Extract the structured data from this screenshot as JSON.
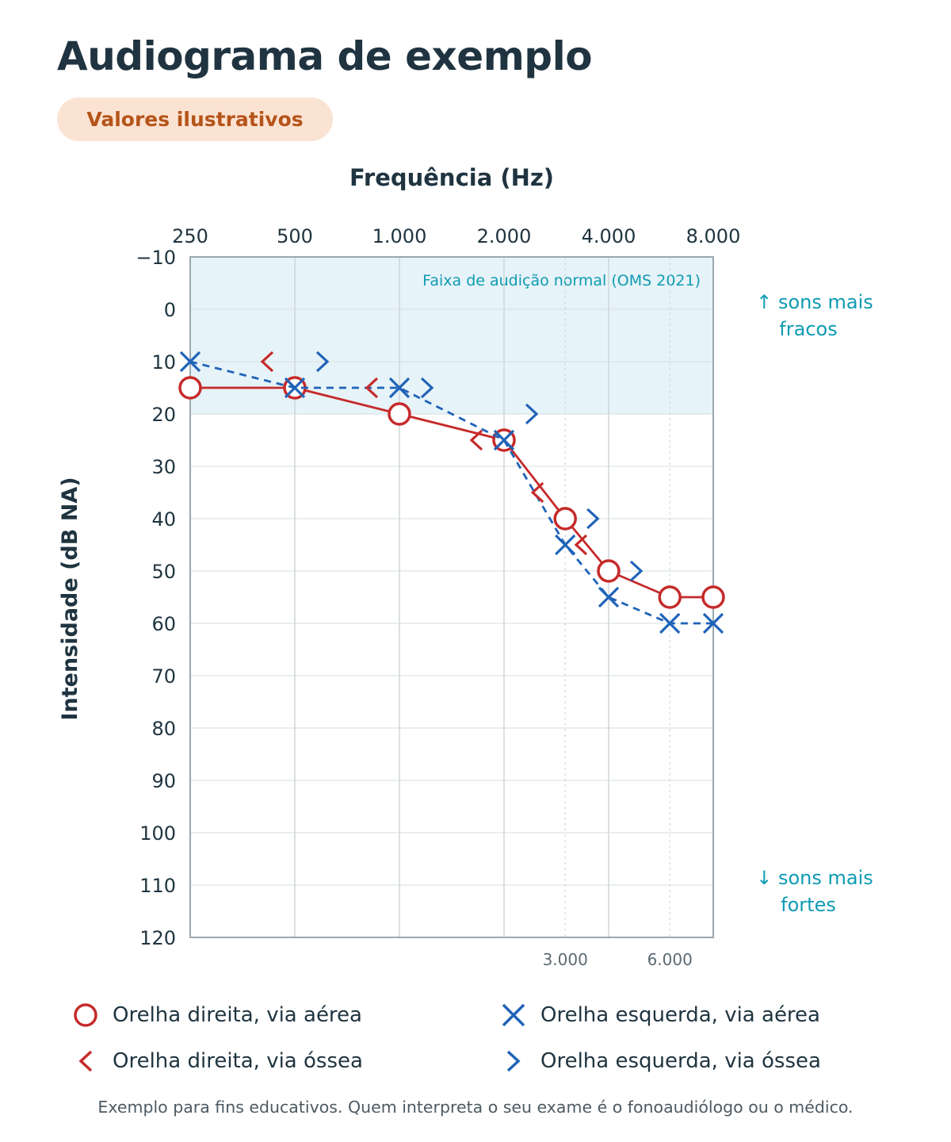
{
  "header": {
    "title": "Audiograma de exemplo",
    "badge": "Valores ilustrativos"
  },
  "chart_data": {
    "type": "line",
    "title": "Audiograma de exemplo",
    "xlabel": "Frequência (Hz)",
    "ylabel": "Intensidade (dB NA)",
    "x_scale": "log",
    "ylim": [
      -10,
      120
    ],
    "y_inverted": true,
    "y_ticks": [
      -10,
      0,
      10,
      20,
      30,
      40,
      50,
      60,
      70,
      80,
      90,
      100,
      110,
      120
    ],
    "y_tick_labels": [
      "−10",
      "0",
      "10",
      "20",
      "30",
      "40",
      "50",
      "60",
      "70",
      "80",
      "90",
      "100",
      "110",
      "120"
    ],
    "x_ticks_top": [
      {
        "freq": 250,
        "label": "250"
      },
      {
        "freq": 500,
        "label": "500"
      },
      {
        "freq": 1000,
        "label": "1.000"
      },
      {
        "freq": 2000,
        "label": "2.000"
      },
      {
        "freq": 4000,
        "label": "4.000"
      },
      {
        "freq": 8000,
        "label": "8.000"
      }
    ],
    "x_ticks_bottom": [
      {
        "freq": 3000,
        "label": "3.000"
      },
      {
        "freq": 6000,
        "label": "6.000"
      }
    ],
    "grid": true,
    "normal_band": {
      "from": -10,
      "to": 20,
      "label": "Faixa de audição normal (OMS 2021)"
    },
    "annotations": {
      "top": "↑ sons mais fracos",
      "bottom": "↓ sons mais fortes"
    },
    "series": [
      {
        "name": "Orelha direita, via aérea",
        "marker": "circle",
        "color": "#c62a2a",
        "line": "solid",
        "points": [
          {
            "freq": 250,
            "db": 15
          },
          {
            "freq": 500,
            "db": 15
          },
          {
            "freq": 1000,
            "db": 20
          },
          {
            "freq": 2000,
            "db": 25
          },
          {
            "freq": 3000,
            "db": 40
          },
          {
            "freq": 4000,
            "db": 50
          },
          {
            "freq": 6000,
            "db": 55
          },
          {
            "freq": 8000,
            "db": 55
          }
        ]
      },
      {
        "name": "Orelha esquerda, via aérea",
        "marker": "x",
        "color": "#1f63b8",
        "line": "dashed",
        "points": [
          {
            "freq": 250,
            "db": 10
          },
          {
            "freq": 500,
            "db": 15
          },
          {
            "freq": 1000,
            "db": 15
          },
          {
            "freq": 2000,
            "db": 25
          },
          {
            "freq": 3000,
            "db": 45
          },
          {
            "freq": 4000,
            "db": 55
          },
          {
            "freq": 6000,
            "db": 60
          },
          {
            "freq": 8000,
            "db": 60
          }
        ]
      },
      {
        "name": "Orelha direita, via óssea",
        "marker": "chevron-left",
        "color": "#c62a2a",
        "line": "none",
        "points": [
          {
            "freq": 500,
            "db": 10
          },
          {
            "freq": 1000,
            "db": 15
          },
          {
            "freq": 2000,
            "db": 25
          },
          {
            "freq": 3000,
            "db": 35
          },
          {
            "freq": 4000,
            "db": 45
          }
        ]
      },
      {
        "name": "Orelha esquerda, via óssea",
        "marker": "chevron-right",
        "color": "#1f63b8",
        "line": "none",
        "points": [
          {
            "freq": 500,
            "db": 10
          },
          {
            "freq": 1000,
            "db": 15
          },
          {
            "freq": 2000,
            "db": 20
          },
          {
            "freq": 3000,
            "db": 40
          },
          {
            "freq": 4000,
            "db": 50
          }
        ]
      }
    ]
  },
  "legend": [
    {
      "marker": "circle",
      "label": "Orelha direita, via aérea",
      "color": "#c62a2a"
    },
    {
      "marker": "x",
      "label": "Orelha esquerda, via aérea",
      "color": "#1f63b8"
    },
    {
      "marker": "chevron-left",
      "label": "Orelha direita, via óssea",
      "color": "#c62a2a"
    },
    {
      "marker": "chevron-right",
      "label": "Orelha esquerda, via óssea",
      "color": "#1f63b8"
    }
  ],
  "footnote": "Exemplo para fins educativos. Quem interpreta o seu exame é o fonoaudiólogo ou o médico."
}
